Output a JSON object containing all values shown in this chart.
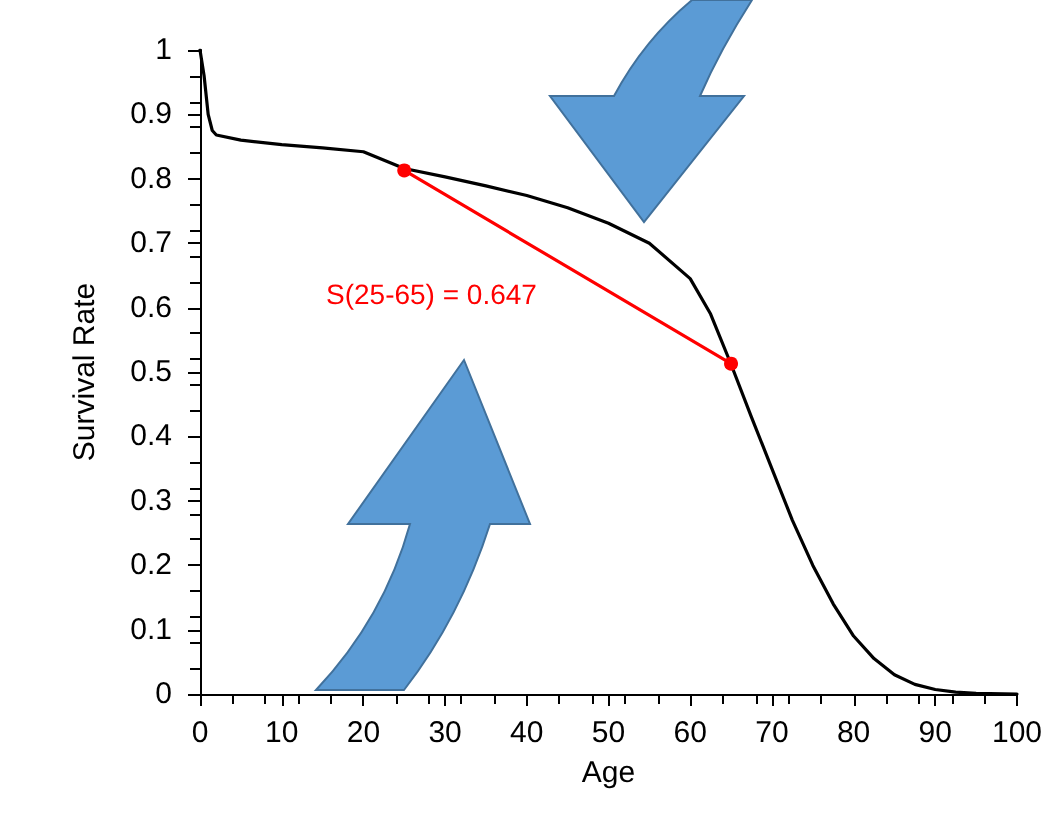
{
  "chart_data": {
    "type": "line",
    "xlabel": "Age",
    "ylabel": "Survival Rate",
    "xlim": [
      0,
      100
    ],
    "xticks": [
      0,
      10,
      20,
      30,
      40,
      50,
      60,
      70,
      80,
      90,
      100
    ],
    "ylim": [
      0,
      1
    ],
    "yticks": [
      0,
      0.1,
      0.2,
      0.3,
      0.4,
      0.5,
      0.6,
      0.7,
      0.8,
      0.9,
      1
    ],
    "grid": false,
    "series": [
      {
        "color": "#000000",
        "marker": "none",
        "x": [
          0,
          0.5,
          1,
          1.5,
          2,
          5,
          10,
          15,
          20,
          25,
          30,
          35,
          40,
          45,
          50,
          55,
          60,
          62.5,
          65,
          67.5,
          70,
          72.5,
          75,
          77.5,
          80,
          82.5,
          85,
          87.5,
          90,
          92.5,
          95,
          100
        ],
        "values": [
          1,
          0.96,
          0.9,
          0.875,
          0.868,
          0.86,
          0.853,
          0.848,
          0.842,
          0.816,
          0.803,
          0.789,
          0.774,
          0.755,
          0.731,
          0.7,
          0.645,
          0.59,
          0.512,
          0.43,
          0.35,
          0.27,
          0.2,
          0.14,
          0.09,
          0.055,
          0.03,
          0.015,
          0.007,
          0.003,
          0.001,
          0
        ]
      },
      {
        "color": "#ff0000",
        "marker": "circle",
        "x": [
          25,
          65
        ],
        "values": [
          0.813,
          0.513
        ]
      }
    ],
    "annotations": [
      "S(25-65) = 0.647"
    ]
  }
}
